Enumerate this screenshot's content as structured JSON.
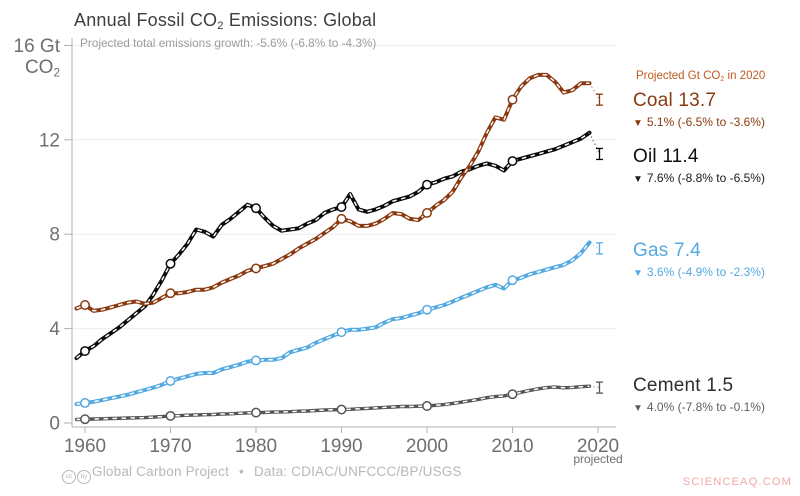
{
  "title": {
    "pre": "Annual Fossil CO",
    "sub": "2",
    "post": " Emissions: Global"
  },
  "subtitle": "Projected total emissions growth: -5.6% (-6.8% to -4.3%)",
  "y_axis_unit": {
    "line1": "16 Gt",
    "line2_pre": "CO",
    "line2_sub": "2"
  },
  "icons": {
    "down_triangle": "▼",
    "cc_badge": "cc",
    "by_badge": "by",
    "bullet": "•"
  },
  "legend": {
    "header": {
      "pre": "Projected Gt CO",
      "sub": "2",
      "post": " in 2020"
    },
    "entries": [
      {
        "name": "Coal",
        "value": "13.7",
        "change": "5.1% (-6.5% to -3.6%)",
        "name_color": "#8a3a10",
        "change_color": "#8a3a10"
      },
      {
        "name": "Oil",
        "value": "11.4",
        "change": "7.6% (-8.8% to -6.5%)",
        "name_color": "#0f0f0f",
        "change_color": "#1a1a1a"
      },
      {
        "name": "Gas",
        "value": "7.4",
        "change": "3.6% (-4.9% to -2.3%)",
        "name_color": "#54a9e0",
        "change_color": "#54a9e0"
      },
      {
        "name": "Cement",
        "value": "1.5",
        "change": "4.0% (-7.8% to -0.1%)",
        "name_color": "#2e2e2e",
        "change_color": "#5f5f5f"
      }
    ]
  },
  "footer": {
    "attribution": "Global Carbon Project",
    "data_source": "Data: CDIAC/UNFCCC/BP/USGS"
  },
  "watermark": "SCIENCEAQ.COM",
  "chart_data": {
    "type": "line",
    "title": "Annual Fossil CO2 Emissions: Global",
    "ylabel": "Gt CO2",
    "ylim": [
      0,
      16
    ],
    "grid_values": [
      4,
      8,
      12,
      16
    ],
    "y_tick_labels": [
      0,
      4,
      8,
      12
    ],
    "x_ticks": [
      1960,
      1970,
      1980,
      1990,
      2000,
      2010,
      2020
    ],
    "projected_tick_label": "projected",
    "marker_years": [
      1960,
      1970,
      1980,
      1990,
      2000,
      2010
    ],
    "projected_year": 2020,
    "x": [
      1959,
      1960,
      1961,
      1962,
      1963,
      1964,
      1965,
      1966,
      1967,
      1968,
      1969,
      1970,
      1971,
      1972,
      1973,
      1974,
      1975,
      1976,
      1977,
      1978,
      1979,
      1980,
      1981,
      1982,
      1983,
      1984,
      1985,
      1986,
      1987,
      1988,
      1989,
      1990,
      1991,
      1992,
      1993,
      1994,
      1995,
      1996,
      1997,
      1998,
      1999,
      2000,
      2001,
      2002,
      2003,
      2004,
      2005,
      2006,
      2007,
      2008,
      2009,
      2010,
      2011,
      2012,
      2013,
      2014,
      2015,
      2016,
      2017,
      2018,
      2019
    ],
    "series": [
      {
        "name": "Cement",
        "color": "#555555",
        "line_width": 3.4,
        "projected_2020": 1.5,
        "values": [
          0.15,
          0.16,
          0.17,
          0.18,
          0.19,
          0.2,
          0.21,
          0.22,
          0.23,
          0.25,
          0.27,
          0.3,
          0.31,
          0.33,
          0.34,
          0.35,
          0.36,
          0.38,
          0.39,
          0.41,
          0.43,
          0.44,
          0.45,
          0.46,
          0.47,
          0.48,
          0.5,
          0.51,
          0.53,
          0.55,
          0.56,
          0.57,
          0.58,
          0.6,
          0.62,
          0.64,
          0.66,
          0.68,
          0.7,
          0.7,
          0.71,
          0.72,
          0.75,
          0.78,
          0.83,
          0.88,
          0.94,
          1.0,
          1.07,
          1.12,
          1.15,
          1.22,
          1.3,
          1.38,
          1.45,
          1.5,
          1.52,
          1.49,
          1.51,
          1.54,
          1.56
        ]
      },
      {
        "name": "Gas",
        "color": "#54a9e0",
        "line_width": 4,
        "projected_2020": 7.4,
        "values": [
          0.8,
          0.85,
          0.9,
          0.97,
          1.05,
          1.12,
          1.2,
          1.3,
          1.4,
          1.5,
          1.62,
          1.78,
          1.88,
          1.98,
          2.08,
          2.12,
          2.12,
          2.27,
          2.37,
          2.47,
          2.6,
          2.65,
          2.68,
          2.68,
          2.75,
          3.0,
          3.1,
          3.2,
          3.4,
          3.55,
          3.7,
          3.85,
          3.95,
          3.95,
          4.0,
          4.05,
          4.25,
          4.4,
          4.45,
          4.55,
          4.65,
          4.8,
          4.9,
          5.0,
          5.15,
          5.3,
          5.45,
          5.6,
          5.75,
          5.85,
          5.7,
          6.05,
          6.15,
          6.3,
          6.4,
          6.5,
          6.6,
          6.7,
          6.9,
          7.2,
          7.65
        ]
      },
      {
        "name": "Oil",
        "color": "#0a0a0a",
        "line_width": 4,
        "projected_2020": 11.4,
        "values": [
          2.75,
          3.05,
          3.25,
          3.55,
          3.8,
          4.05,
          4.35,
          4.65,
          4.95,
          5.45,
          6.05,
          6.75,
          7.15,
          7.6,
          8.2,
          8.1,
          7.9,
          8.4,
          8.65,
          8.95,
          9.25,
          9.1,
          8.7,
          8.35,
          8.15,
          8.2,
          8.25,
          8.45,
          8.6,
          8.9,
          9.05,
          9.15,
          9.7,
          9.05,
          8.95,
          9.05,
          9.2,
          9.4,
          9.5,
          9.6,
          9.8,
          10.1,
          10.2,
          10.35,
          10.45,
          10.65,
          10.75,
          10.9,
          11.0,
          10.9,
          10.7,
          11.1,
          11.2,
          11.3,
          11.4,
          11.5,
          11.6,
          11.75,
          11.9,
          12.05,
          12.3
        ]
      },
      {
        "name": "Coal",
        "color": "#8a3a10",
        "line_width": 4,
        "projected_2020": 13.7,
        "values": [
          4.85,
          5.0,
          4.75,
          4.8,
          4.9,
          5.0,
          5.1,
          5.15,
          5.05,
          5.1,
          5.3,
          5.5,
          5.5,
          5.55,
          5.65,
          5.65,
          5.75,
          5.95,
          6.1,
          6.25,
          6.45,
          6.55,
          6.65,
          6.75,
          6.95,
          7.15,
          7.4,
          7.6,
          7.8,
          8.05,
          8.3,
          8.65,
          8.55,
          8.35,
          8.35,
          8.45,
          8.65,
          8.9,
          8.85,
          8.65,
          8.6,
          8.9,
          9.2,
          9.45,
          9.8,
          10.4,
          10.9,
          11.5,
          12.3,
          12.95,
          12.85,
          13.7,
          14.25,
          14.6,
          14.75,
          14.75,
          14.45,
          14.0,
          14.1,
          14.4,
          14.4
        ]
      }
    ]
  }
}
